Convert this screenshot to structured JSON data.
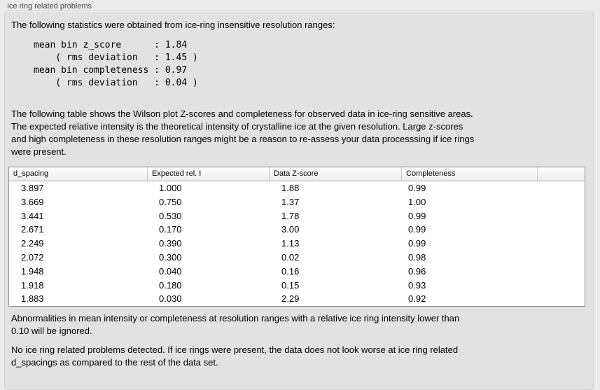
{
  "window": {
    "section_title": "Ice ring related problems"
  },
  "intro_text": "The following statistics were obtained from ice-ring insensitive resolution ranges:",
  "stats_block": [
    "mean bin z_score      : 1.84",
    "    ( rms deviation   : 1.45 )",
    "mean bin completeness : 0.97",
    "    ( rms deviation   : 0.04 )"
  ],
  "table_description": [
    "The following table shows the Wilson plot Z-scores and completeness for observed data in ice-ring sensitive areas.",
    "The expected relative intensity is the theoretical intensity of crystalline ice at the given resolution. Large z-scores",
    "and high completeness in these resolution ranges might be a reason to re-assess your data processsing if ice rings",
    "were present."
  ],
  "ice_ring_table": {
    "columns": [
      "d_spacing",
      "Expected rel. I",
      "Data Z-score",
      "Completeness"
    ],
    "rows": [
      [
        "3.897",
        "1.000",
        "1.88",
        "0.99"
      ],
      [
        "3.669",
        "0.750",
        "1.37",
        "1.00"
      ],
      [
        "3.441",
        "0.530",
        "1.78",
        "0.99"
      ],
      [
        "2.671",
        "0.170",
        "3.00",
        "0.99"
      ],
      [
        "2.249",
        "0.390",
        "1.13",
        "0.99"
      ],
      [
        "2.072",
        "0.300",
        "0.02",
        "0.98"
      ],
      [
        "1.948",
        "0.040",
        "0.16",
        "0.96"
      ],
      [
        "1.918",
        "0.180",
        "0.15",
        "0.93"
      ],
      [
        "1.883",
        "0.030",
        "2.29",
        "0.92"
      ]
    ]
  },
  "footnote_text": [
    "Abnormalities in mean intensity or completeness at resolution ranges with a relative ice ring intensity lower than",
    "0.10 will be ignored."
  ],
  "conclusion_text": [
    "No ice ring related problems detected. If ice rings were present, the data does not look worse at ice ring related",
    "d_spacings as compared to the rest of the data set."
  ],
  "colors": {
    "page_background": "#ececec",
    "panel_background": "#e2e2e2",
    "panel_border": "#d2d1d1",
    "table_border": "#8f8f8f",
    "header_divider": "#c9c9c9",
    "section_title_text": "#474747",
    "body_text": "#000000"
  }
}
